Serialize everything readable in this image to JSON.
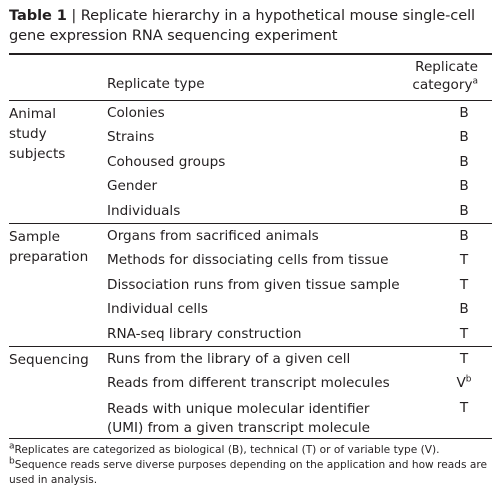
{
  "caption": {
    "table_number": "Table 1",
    "separator": " | ",
    "text": "Replicate hierarchy in a hypothetical mouse single-cell gene expression RNA sequencing experiment"
  },
  "header": {
    "col_type": "Replicate type",
    "col_category_line1": "Replicate",
    "col_category_line2": "category",
    "col_category_sup": "a"
  },
  "groups": [
    {
      "label": "Animal study subjects",
      "rows": [
        {
          "type": "Colonies",
          "category": "B"
        },
        {
          "type": "Strains",
          "category": "B"
        },
        {
          "type": "Cohoused groups",
          "category": "B"
        },
        {
          "type": "Gender",
          "category": "B"
        },
        {
          "type": "Individuals",
          "category": "B"
        }
      ]
    },
    {
      "label": "Sample preparation",
      "rows": [
        {
          "type": "Organs from sacrificed animals",
          "category": "B"
        },
        {
          "type": "Methods for dissociating cells from tissue",
          "category": "T"
        },
        {
          "type": "Dissociation runs from given tissue sample",
          "category": "T"
        },
        {
          "type": "Individual cells",
          "category": "B"
        },
        {
          "type": "RNA-seq library construction",
          "category": "T"
        }
      ]
    },
    {
      "label": "Sequencing",
      "rows": [
        {
          "type": "Runs from the library of a given cell",
          "category": "T"
        },
        {
          "type": "Reads from different transcript molecules",
          "category": "V",
          "sup": "b"
        },
        {
          "type": "Reads with unique molecular identifier (UMI) from a given transcript molecule",
          "category": "T"
        }
      ]
    }
  ],
  "footnote": {
    "a_mark": "a",
    "a_text": "Replicates are categorized as biological (B), technical (T) or of variable type (V). ",
    "b_mark": "b",
    "b_text": "Sequence reads serve diverse purposes depending on the application and how reads are used in analysis."
  }
}
